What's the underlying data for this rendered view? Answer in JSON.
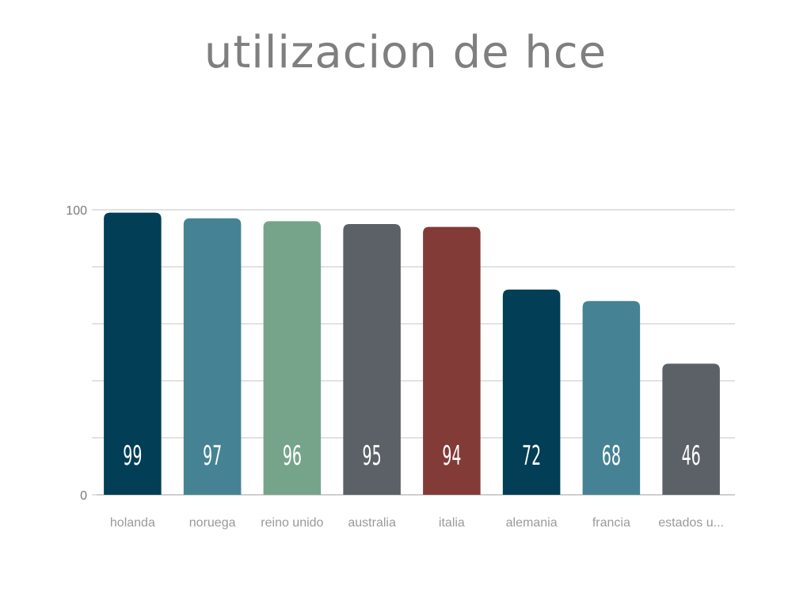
{
  "chart_data": {
    "type": "bar",
    "title": "utilizacion de hce",
    "categories": [
      "holanda",
      "noruega",
      "reino unido",
      "australia",
      "italia",
      "alemania",
      "francia",
      "estados u..."
    ],
    "values": [
      99,
      97,
      96,
      95,
      94,
      72,
      68,
      46
    ],
    "value_labels": [
      "99",
      "97",
      "96",
      "95",
      "94",
      "72",
      "68",
      "46"
    ],
    "ylim": [
      0,
      100
    ],
    "yticks": [
      0,
      100
    ],
    "ytick_labels": [
      "0",
      "100"
    ],
    "gridlines": 6,
    "grid": true,
    "legend": "none",
    "colors": [
      "#023e56",
      "#458394",
      "#76a48b",
      "#5b6166",
      "#823b36",
      "#023e56",
      "#458394",
      "#5b6166"
    ]
  }
}
